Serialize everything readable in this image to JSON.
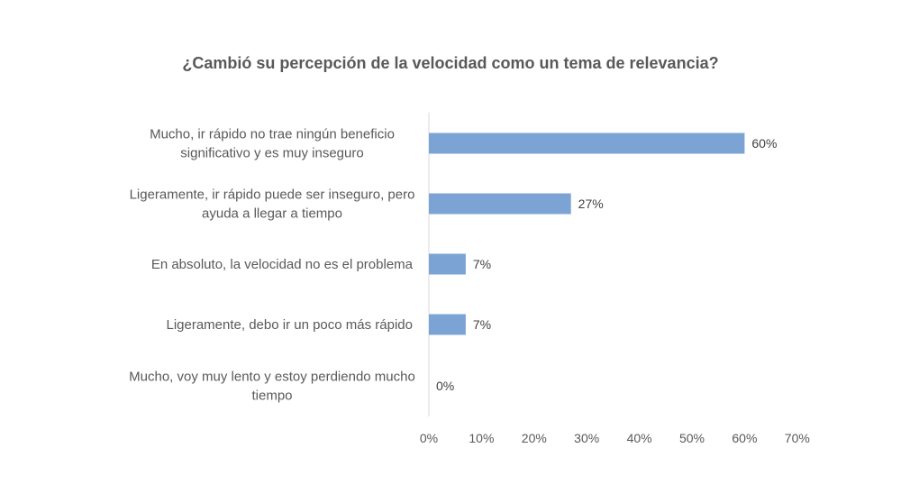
{
  "chart_data": {
    "type": "bar",
    "orientation": "horizontal",
    "title": "¿Cambió su percepción de la velocidad como un tema de relevancia?",
    "categories": [
      [
        "Mucho, ir rápido no trae ningún beneficio",
        "significativo y es muy inseguro"
      ],
      [
        "Ligeramente, ir rápido puede ser inseguro, pero",
        "ayuda a llegar a tiempo"
      ],
      [
        "En absoluto, la velocidad no es el problema"
      ],
      [
        "Ligeramente, debo ir un poco más rápido"
      ],
      [
        "Mucho, voy muy lento y estoy perdiendo mucho",
        "tiempo"
      ]
    ],
    "values": [
      60,
      27,
      7,
      7,
      0
    ],
    "value_labels": [
      "60%",
      "27%",
      "7%",
      "7%",
      "0%"
    ],
    "xlim": [
      0,
      70
    ],
    "xticks": [
      "0%",
      "10%",
      "20%",
      "30%",
      "40%",
      "50%",
      "60%",
      "70%"
    ],
    "bar_color": "#7BA3D4",
    "grid": false,
    "legend": "none"
  }
}
